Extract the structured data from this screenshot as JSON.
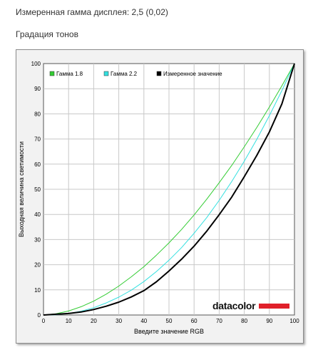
{
  "header": {
    "title": "Измеренная гамма дисплея: 2,5 (0,02)",
    "subtitle": "Градация тонов"
  },
  "logo": {
    "text": "datacolor",
    "accent_color": "#e0202a"
  },
  "chart_data": {
    "type": "line",
    "title": "",
    "xlabel": "Введите значение RGB",
    "ylabel": "Выходная величина светимости",
    "xlim": [
      0,
      100
    ],
    "ylim": [
      0,
      100
    ],
    "xticks": [
      0,
      10,
      20,
      30,
      40,
      50,
      60,
      70,
      80,
      90,
      100
    ],
    "yticks": [
      0,
      10,
      20,
      30,
      40,
      50,
      60,
      70,
      80,
      90,
      100
    ],
    "grid": true,
    "legend": "top-left",
    "series": [
      {
        "name": "Гамма 1.8",
        "color": "#33cc33",
        "x": [
          0,
          5,
          10,
          15,
          20,
          25,
          30,
          35,
          40,
          45,
          50,
          55,
          60,
          65,
          70,
          75,
          80,
          85,
          90,
          95,
          100
        ],
        "values": [
          0,
          0.5,
          1.6,
          3.3,
          5.5,
          8.3,
          11.5,
          15.2,
          19.2,
          23.8,
          28.7,
          34,
          39.8,
          46,
          52.6,
          59.5,
          66.9,
          74.6,
          82.7,
          91.2,
          100
        ]
      },
      {
        "name": "Гамма 2.2",
        "color": "#33e0e0",
        "x": [
          0,
          5,
          10,
          15,
          20,
          25,
          30,
          35,
          40,
          45,
          50,
          55,
          60,
          65,
          70,
          75,
          80,
          85,
          90,
          95,
          100
        ],
        "values": [
          0,
          0.1,
          0.6,
          1.5,
          2.9,
          4.8,
          7.1,
          9.9,
          13.3,
          17.3,
          21.8,
          26.8,
          32.5,
          38.7,
          45.6,
          53.1,
          61.2,
          69.9,
          79.3,
          89.3,
          100
        ]
      },
      {
        "name": "Измеренное значение",
        "color": "#000000",
        "x": [
          0,
          5,
          10,
          15,
          20,
          25,
          30,
          35,
          40,
          45,
          50,
          55,
          60,
          65,
          70,
          75,
          80,
          85,
          90,
          95,
          100
        ],
        "values": [
          0,
          0.3,
          0.6,
          1.2,
          2.2,
          3.5,
          5.1,
          7.2,
          9.7,
          13.2,
          17.5,
          22.2,
          27.4,
          33.3,
          39.9,
          46.9,
          55,
          63.5,
          72.8,
          84,
          100
        ]
      }
    ]
  }
}
